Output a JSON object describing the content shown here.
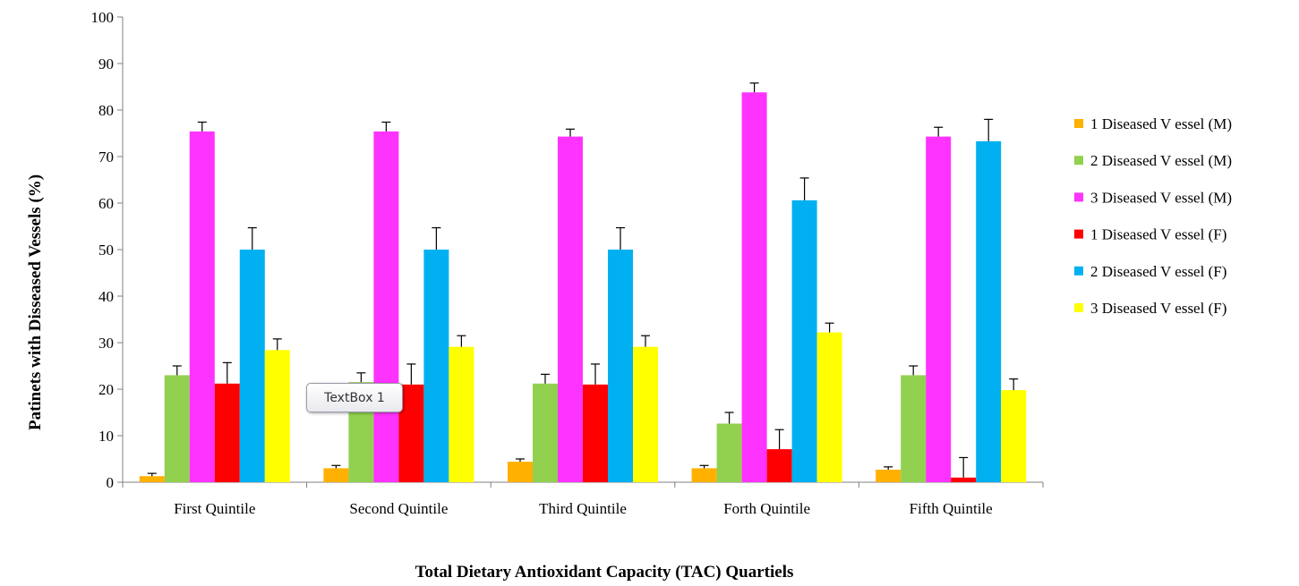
{
  "chart_data": {
    "type": "bar",
    "title": "",
    "xlabel": "Total Dietary Antioxidant Capacity (TAC) Quartiels",
    "ylabel": "Patinets with Disseased Vessels (%)",
    "ylim": [
      0,
      100
    ],
    "yticks": [
      0,
      10,
      20,
      30,
      40,
      50,
      60,
      70,
      80,
      90,
      100
    ],
    "grid": false,
    "legend_position": "right",
    "categories": [
      "First Quintile",
      "Second Quintile",
      "Third Quintile",
      "Forth Quintile",
      "Fifth Quintile"
    ],
    "series": [
      {
        "name": "1 Diseased V essel (M)",
        "color": "#FFB000",
        "values": [
          1.3,
          3.0,
          4.4,
          3.0,
          2.7
        ],
        "errors": [
          0.6,
          0.6,
          0.6,
          0.6,
          0.6
        ]
      },
      {
        "name": "2 Diseased V essel (M)",
        "color": "#92D050",
        "values": [
          23.0,
          21.5,
          21.2,
          12.6,
          23.0
        ],
        "errors": [
          2.0,
          2.0,
          2.0,
          2.4,
          2.0
        ]
      },
      {
        "name": "3 Diseased V essel (M)",
        "color": "#FF33FF",
        "values": [
          75.4,
          75.4,
          74.3,
          83.8,
          74.3
        ],
        "errors": [
          2.0,
          2.0,
          1.6,
          2.0,
          2.0
        ]
      },
      {
        "name": "1 Diseased V essel (F)",
        "color": "#FF0000",
        "values": [
          21.2,
          21.0,
          21.0,
          7.1,
          1.0
        ],
        "errors": [
          4.5,
          4.4,
          4.4,
          4.2,
          4.3
        ]
      },
      {
        "name": "2 Diseased V essel (F)",
        "color": "#00B0F0",
        "values": [
          50.0,
          50.0,
          50.0,
          60.6,
          73.3
        ],
        "errors": [
          4.7,
          4.7,
          4.7,
          4.8,
          4.7
        ]
      },
      {
        "name": "3 Diseased V essel (F)",
        "color": "#FFFF00",
        "values": [
          28.4,
          29.1,
          29.1,
          32.2,
          19.8
        ],
        "errors": [
          2.4,
          2.4,
          2.4,
          2.0,
          2.4
        ]
      }
    ]
  },
  "textbox": {
    "label": "TextBox 1"
  }
}
